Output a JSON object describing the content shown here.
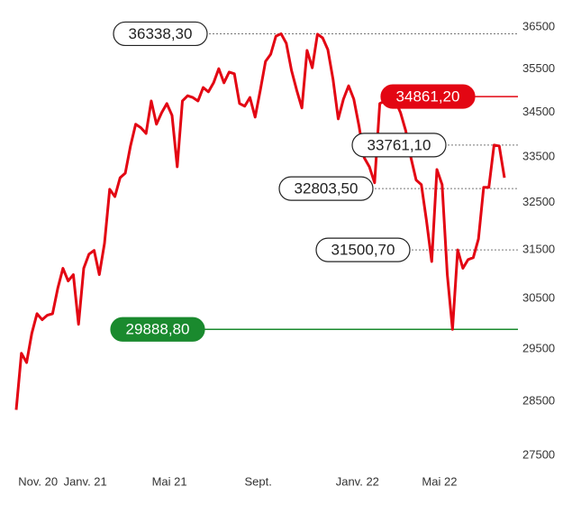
{
  "chart_data": {
    "type": "line",
    "yscale": "log",
    "series": [
      {
        "name": null,
        "color": "#e30613",
        "values": [
          28340,
          29420,
          29240,
          29810,
          30200,
          30080,
          30170,
          30200,
          30710,
          31120,
          30860,
          30990,
          29990,
          31120,
          31410,
          31490,
          30990,
          31640,
          32790,
          32630,
          33040,
          33140,
          33740,
          34230,
          34150,
          34020,
          34760,
          34230,
          34490,
          34700,
          34430,
          33280,
          34760,
          34880,
          34840,
          34760,
          35070,
          34970,
          35180,
          35510,
          35180,
          35430,
          35390,
          34700,
          34640,
          34840,
          34390,
          35010,
          35680,
          35850,
          36280,
          36338.3,
          36110,
          35470,
          35010,
          34600,
          35940,
          35530,
          36330,
          36240,
          35960,
          35260,
          34350,
          34800,
          35110,
          34800,
          34190,
          33480,
          33280,
          32930,
          34700,
          34760,
          34840,
          34760,
          34490,
          34080,
          33480,
          32990,
          32890,
          32110,
          31260,
          33220,
          32890,
          30990,
          29888.8,
          31500.7,
          31120,
          31300,
          31340,
          31730,
          32830,
          32830,
          33761.1,
          33740,
          33040
        ]
      }
    ],
    "xlim": [
      0,
      94
    ],
    "xticks": [
      {
        "value": 4.2,
        "label": "Nov. 20"
      },
      {
        "value": 13.3,
        "label": "Janv. 21"
      },
      {
        "value": 29.5,
        "label": "Mai 21"
      },
      {
        "value": 46.6,
        "label": "Sept."
      },
      {
        "value": 65.7,
        "label": "Janv. 22"
      },
      {
        "value": 81.5,
        "label": "Mai 22"
      }
    ],
    "ylim": [
      27500,
      36500
    ],
    "yticks": [
      36500,
      35500,
      34500,
      33500,
      32500,
      31500,
      30500,
      29500,
      28500,
      27500
    ],
    "annotations": [
      {
        "value": 36338.3,
        "label": "36338,30",
        "style": "outline",
        "color": "#333333"
      },
      {
        "value": 34861.2,
        "label": "34861,20",
        "style": "filled",
        "color": "#e30613"
      },
      {
        "value": 33761.1,
        "label": "33761,10",
        "style": "outline",
        "color": "#333333"
      },
      {
        "value": 32803.5,
        "label": "32803,50",
        "style": "outline",
        "color": "#333333"
      },
      {
        "value": 31500.7,
        "label": "31500,70",
        "style": "outline",
        "color": "#333333"
      },
      {
        "value": 29888.8,
        "label": "29888,80",
        "style": "filled",
        "color": "#1a8a2e"
      }
    ]
  }
}
